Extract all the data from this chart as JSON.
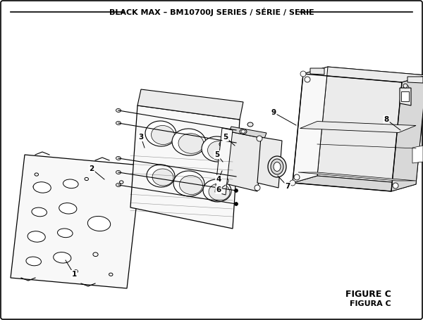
{
  "title": "BLACK MAX – BM10700J SERIES / SÉRIE / SERIE",
  "figure_label": "FIGURE C",
  "figura_label": "FIGURA C",
  "bg_color": "#ffffff",
  "lc": "#000000",
  "fc_light": "#f8f8f8",
  "fc_mid": "#ebebeb",
  "fc_dark": "#d8d8d8",
  "fc_white": "#ffffff"
}
